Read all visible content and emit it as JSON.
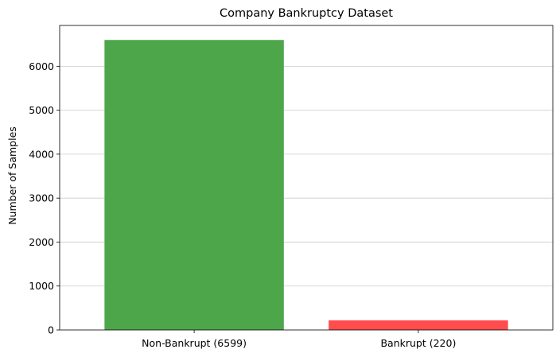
{
  "chart_data": {
    "type": "bar",
    "title": "Company Bankruptcy Dataset",
    "xlabel": "",
    "ylabel": "Number of Samples",
    "categories": [
      "Non-Bankrupt (6599)",
      "Bankrupt (220)"
    ],
    "values": [
      6599,
      220
    ],
    "colors": [
      "#4ea64b",
      "#ff4c4c"
    ],
    "ylim": [
      0,
      6929
    ],
    "yticks": [
      0,
      1000,
      2000,
      3000,
      4000,
      5000,
      6000
    ],
    "grid": "y",
    "legend": "none"
  }
}
